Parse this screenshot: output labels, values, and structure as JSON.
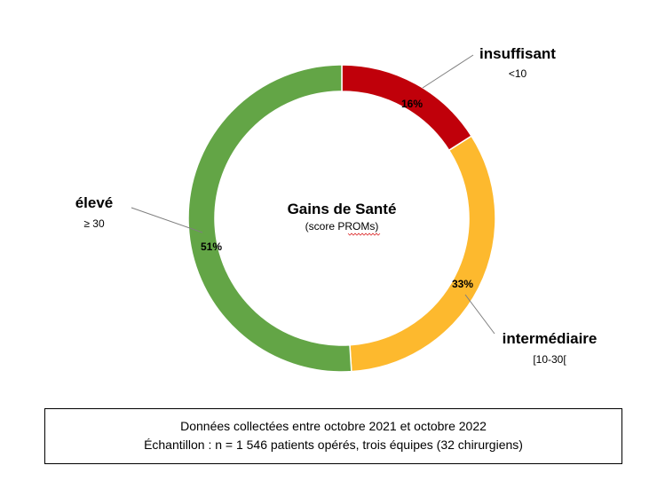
{
  "chart_data": {
    "type": "pie",
    "variant": "donut",
    "center_title": "Gains de Santé",
    "center_subtitle": "(score PROMs)",
    "slices": [
      {
        "name": "insuffisant",
        "range": "<10",
        "value": 16,
        "label": "16%",
        "color": "#C0000A"
      },
      {
        "name": "intermédiaire",
        "range": "[10-30[",
        "value": 33,
        "label": "33%",
        "color": "#FDB92E"
      },
      {
        "name": "élevé",
        "range": "≥ 30",
        "value": 51,
        "label": "51%",
        "color": "#63A546"
      }
    ]
  },
  "note": {
    "line1": "Données collectées entre octobre 2021 et octobre 2022",
    "line2": "Échantillon : n = 1 546 patients opérés, trois équipes (32 chirurgiens)"
  }
}
